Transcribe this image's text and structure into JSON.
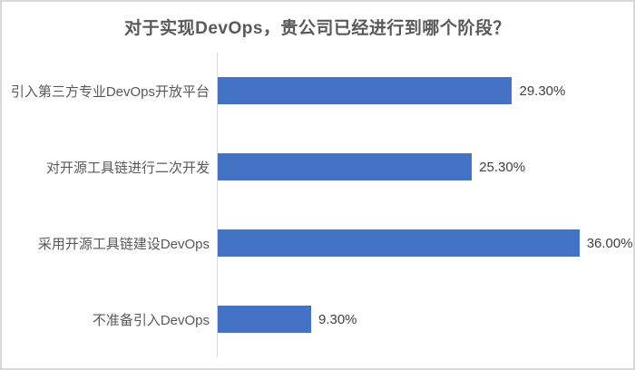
{
  "chart": {
    "title": "对于实现DevOps，贵公司已经进行到哪个阶段？"
  },
  "chart_data": {
    "type": "bar",
    "orientation": "horizontal",
    "title": "对于实现DevOps，贵公司已经进行到哪个阶段？",
    "categories": [
      "引入第三方专业DevOps开放平台",
      "对开源工具链进行二次开发",
      "采用开源工具链建设DevOps",
      "不准备引入DevOps"
    ],
    "values": [
      29.3,
      25.3,
      36.0,
      9.3
    ],
    "value_labels": [
      "29.30%",
      "25.30%",
      "36.00%",
      "9.30%"
    ],
    "xlabel": "",
    "ylabel": "",
    "xlim": [
      0,
      40
    ],
    "grid": false,
    "legend": false,
    "bar_color": "#4472C4",
    "axis_line_color": "#D9D9D9",
    "title_color": "#595959",
    "label_color": "#595959",
    "value_color": "#404040"
  }
}
